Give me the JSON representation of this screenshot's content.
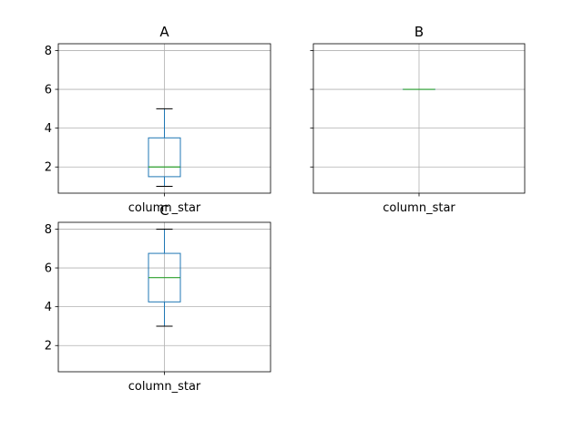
{
  "chart_data": [
    {
      "type": "box",
      "title": "A",
      "categories": [
        "column_star"
      ],
      "box": {
        "whisker_low": 1,
        "q1": 1.5,
        "median": 2,
        "q3": 3.5,
        "whisker_high": 5
      },
      "ylim": [
        0.65,
        8.35
      ],
      "yticks": [
        2,
        4,
        6,
        8
      ],
      "show_ytick_labels": true,
      "grid": true
    },
    {
      "type": "box",
      "title": "B",
      "categories": [
        "column_star"
      ],
      "box": {
        "whisker_low": 6,
        "q1": 6,
        "median": 6,
        "q3": 6,
        "whisker_high": 6
      },
      "ylim": [
        0.65,
        8.35
      ],
      "yticks": [
        2,
        4,
        6,
        8
      ],
      "show_ytick_labels": false,
      "grid": true
    },
    {
      "type": "box",
      "title": "C",
      "categories": [
        "column_star"
      ],
      "box": {
        "whisker_low": 3,
        "q1": 4.25,
        "median": 5.5,
        "q3": 6.75,
        "whisker_high": 8
      },
      "ylim": [
        0.65,
        8.35
      ],
      "yticks": [
        2,
        4,
        6,
        8
      ],
      "show_ytick_labels": true,
      "grid": true
    }
  ],
  "colors": {
    "box": "#1f77b4",
    "median": "#2ca02c",
    "whisker_cap": "#000000",
    "grid": "#b0b0b0",
    "spine": "#000000",
    "text": "#000000"
  }
}
